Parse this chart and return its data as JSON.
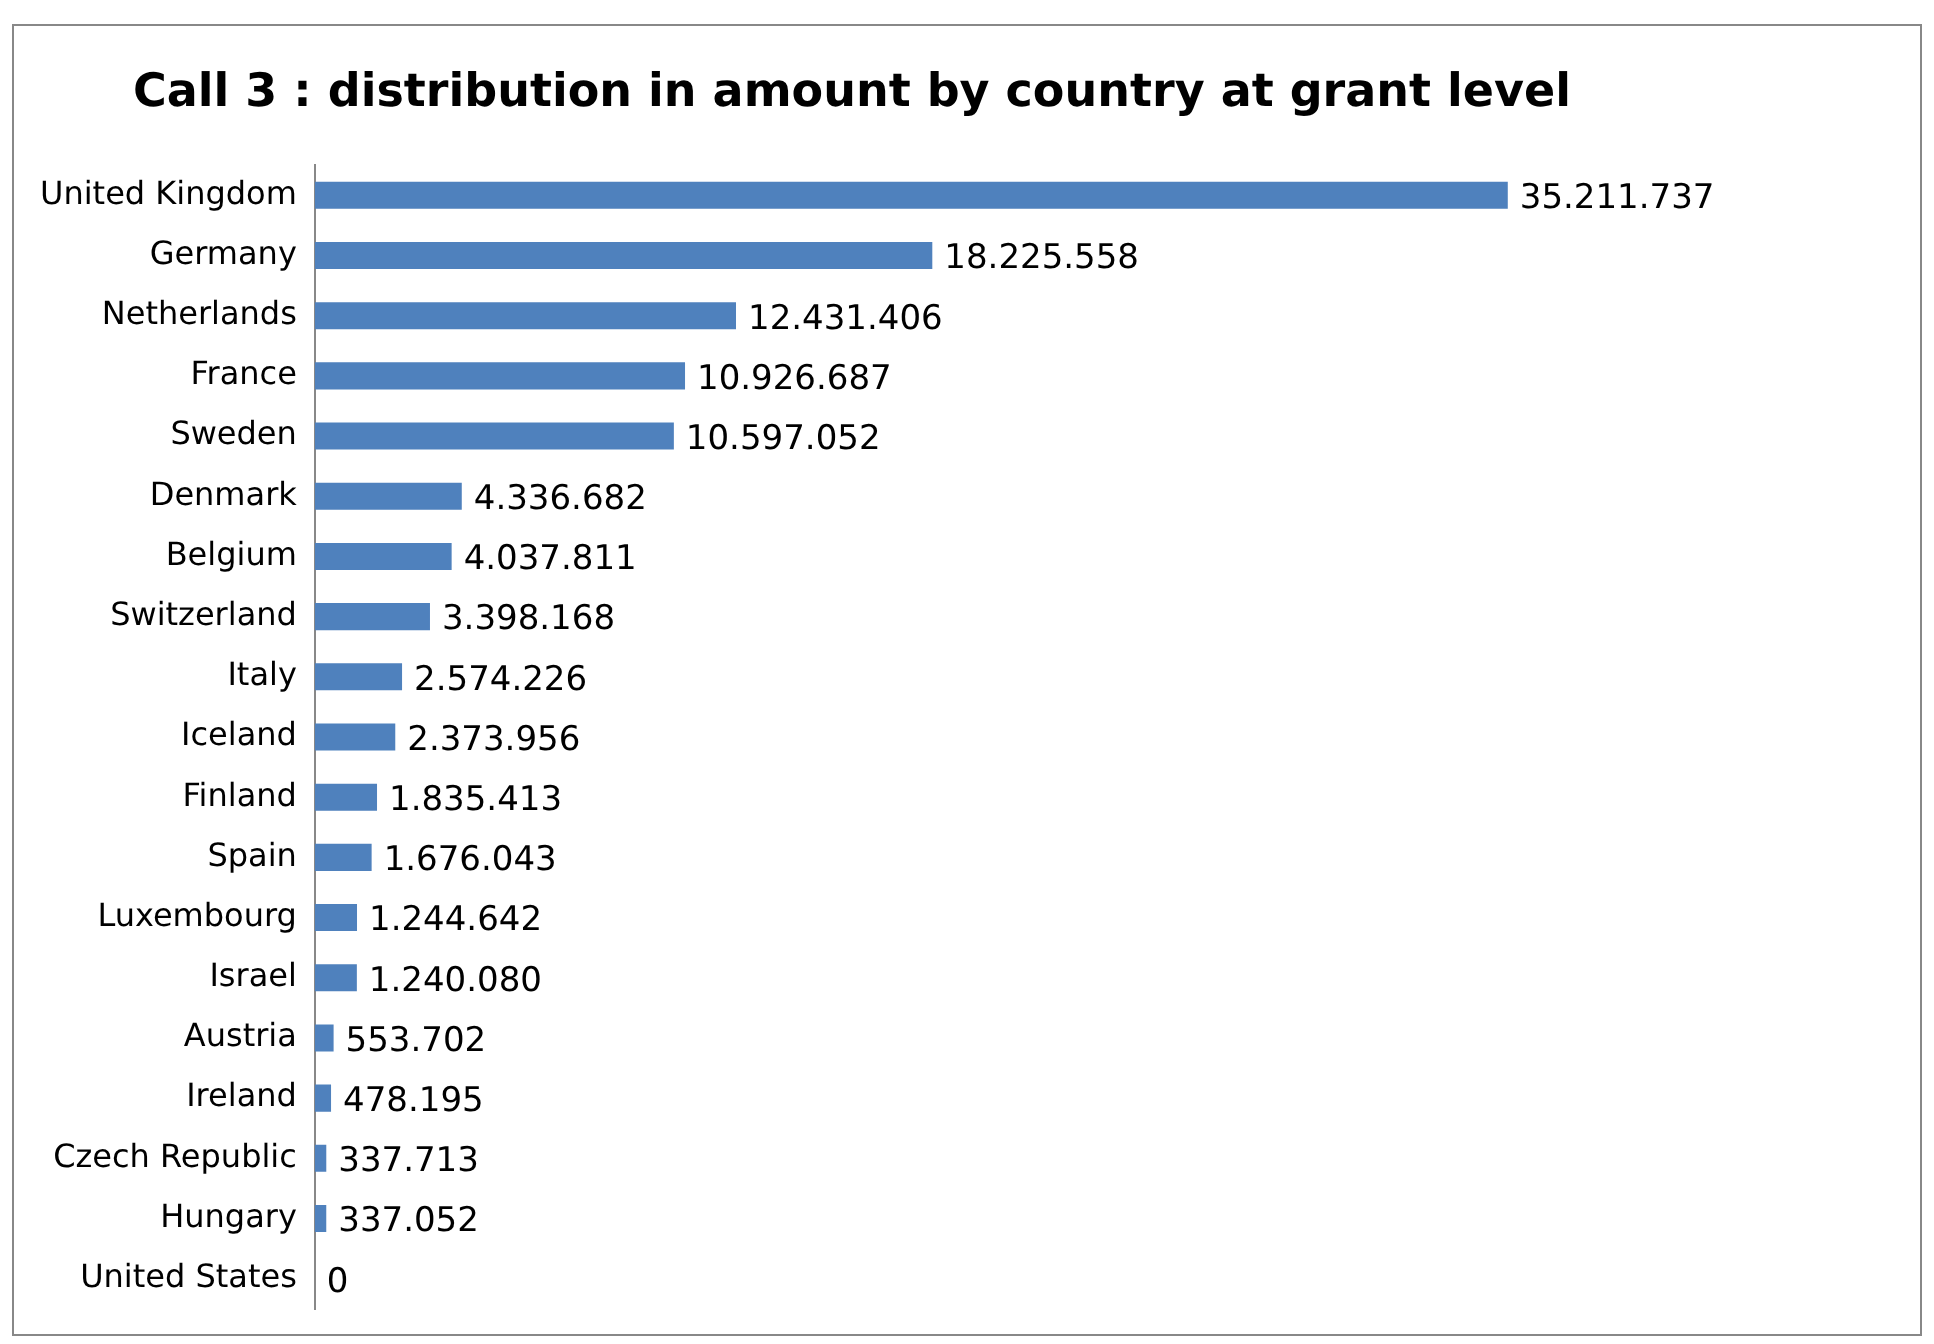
{
  "chart_data": {
    "type": "bar",
    "orientation": "horizontal",
    "title": "Call 3 : distribution in amount by country at grant level",
    "categories": [
      "United Kingdom",
      "Germany",
      "Netherlands",
      "France",
      "Sweden",
      "Denmark",
      "Belgium",
      "Switzerland",
      "Italy",
      "Iceland",
      "Finland",
      "Spain",
      "Luxembourg",
      "Israel",
      "Austria",
      "Ireland",
      "Czech Republic",
      "Hungary",
      "United States"
    ],
    "values": [
      35211737,
      18225558,
      12431406,
      10926687,
      10597052,
      4336682,
      4037811,
      3398168,
      2574226,
      2373956,
      1835413,
      1676043,
      1244642,
      1240080,
      553702,
      478195,
      337713,
      337052,
      0
    ],
    "value_labels": [
      "35.211.737",
      "18.225.558",
      "12.431.406",
      "10.926.687",
      "10.597.052",
      "4.336.682",
      "4.037.811",
      "3.398.168",
      "2.574.226",
      "2.373.956",
      "1.835.413",
      "1.676.043",
      "1.244.642",
      "1.240.080",
      "553.702",
      "478.195",
      "337.713",
      "337.052",
      "0"
    ],
    "color": "#4f81bd",
    "legend": false
  }
}
